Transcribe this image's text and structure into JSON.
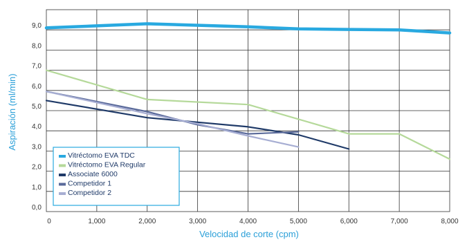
{
  "chart_data": {
    "type": "line",
    "xlabel": "Velocidad de corte (cpm)",
    "ylabel": "Aspiración (ml/min)",
    "xlim": [
      0,
      8000
    ],
    "ylim": [
      0,
      10
    ],
    "x_ticks": [
      0,
      1000,
      2000,
      3000,
      4000,
      5000,
      6000,
      7000,
      8000
    ],
    "x_tick_labels": [
      "0",
      "1,000",
      "2,000",
      "3,000",
      "4,000",
      "5,000",
      "6,000",
      "7,000",
      "8,000"
    ],
    "y_ticks": [
      0,
      1,
      2,
      3,
      4,
      5,
      6,
      7,
      8,
      9
    ],
    "y_tick_labels": [
      "0,0",
      "1,0",
      "2,0",
      "3,0",
      "4,0",
      "5,0",
      "6,0",
      "7,0",
      "8,0",
      "9,0"
    ],
    "grid": true,
    "legend_position": "bottom-left",
    "series": [
      {
        "name": "Vitréctomo EVA TDC",
        "color": "#29a9e0",
        "width": 4.5,
        "points": [
          [
            0,
            9.1
          ],
          [
            2000,
            9.3
          ],
          [
            4000,
            9.15
          ],
          [
            5000,
            9.05
          ],
          [
            6000,
            9.02
          ],
          [
            7000,
            9.0
          ],
          [
            8000,
            8.85
          ]
        ]
      },
      {
        "name": "Vitréctomo EVA Regular",
        "color": "#b5d99a",
        "width": 2.2,
        "points": [
          [
            0,
            7.0
          ],
          [
            2000,
            5.55
          ],
          [
            4000,
            5.3
          ],
          [
            6000,
            3.85
          ],
          [
            7000,
            3.85
          ],
          [
            8000,
            2.6
          ]
        ]
      },
      {
        "name": "Associate 6000",
        "color": "#1f3a68",
        "width": 2.2,
        "points": [
          [
            0,
            5.5
          ],
          [
            2000,
            4.65
          ],
          [
            4000,
            4.2
          ],
          [
            5000,
            3.8
          ],
          [
            6000,
            3.1
          ]
        ]
      },
      {
        "name": "Competidor 1",
        "color": "#5a6a9a",
        "width": 2.2,
        "points": [
          [
            0,
            5.95
          ],
          [
            2000,
            4.95
          ],
          [
            3000,
            4.3
          ],
          [
            4000,
            3.85
          ],
          [
            5000,
            3.95
          ]
        ]
      },
      {
        "name": "Competidor 2",
        "color": "#a7aed3",
        "width": 2.2,
        "points": [
          [
            0,
            5.95
          ],
          [
            2000,
            4.85
          ],
          [
            3000,
            4.35
          ],
          [
            4000,
            3.75
          ],
          [
            5000,
            3.2
          ]
        ]
      }
    ]
  }
}
